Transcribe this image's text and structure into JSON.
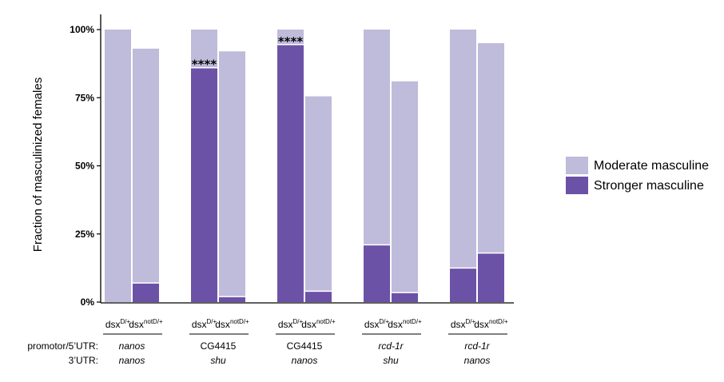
{
  "chart_data": {
    "type": "bar",
    "stacked": true,
    "ylabel": "Fraction of masculinized females",
    "ylim": [
      0,
      100
    ],
    "yticks": [
      0,
      25,
      50,
      75,
      100
    ],
    "ytick_labels": [
      "0%",
      "25%",
      "50%",
      "75%",
      "100%"
    ],
    "legend": {
      "placement": "right",
      "entries": [
        {
          "name": "Moderate masculine",
          "color": "#bfbbdb"
        },
        {
          "name": "Stronger masculine",
          "color": "#6b52a6"
        }
      ]
    },
    "row_labels": {
      "promoter": "promotor/5’UTR:",
      "utr3": "3’UTR:"
    },
    "groups": [
      {
        "promoter": "nanos",
        "promoter_italic": true,
        "utr3": "nanos",
        "utr3_italic": true,
        "bars": [
          {
            "genotype": "dsx",
            "sup": "D/+",
            "total": 100,
            "stronger": 0,
            "annotation": ""
          },
          {
            "genotype": "dsx",
            "sup": "notD/+",
            "total": 93,
            "stronger": 7,
            "annotation": ""
          }
        ]
      },
      {
        "promoter": "CG4415",
        "promoter_italic": false,
        "utr3": "shu",
        "utr3_italic": true,
        "bars": [
          {
            "genotype": "dsx",
            "sup": "D/+",
            "total": 100,
            "stronger": 86,
            "annotation": "****"
          },
          {
            "genotype": "dsx",
            "sup": "notD/+",
            "total": 92,
            "stronger": 2,
            "annotation": ""
          }
        ]
      },
      {
        "promoter": "CG4415",
        "promoter_italic": false,
        "utr3": "nanos",
        "utr3_italic": true,
        "bars": [
          {
            "genotype": "dsx",
            "sup": "D/+",
            "total": 100,
            "stronger": 94.5,
            "annotation": "****"
          },
          {
            "genotype": "dsx",
            "sup": "notD/+",
            "total": 75.5,
            "stronger": 4,
            "annotation": ""
          }
        ]
      },
      {
        "promoter": "rcd-1r",
        "promoter_italic": true,
        "utr3": "shu",
        "utr3_italic": true,
        "bars": [
          {
            "genotype": "dsx",
            "sup": "D/+",
            "total": 100,
            "stronger": 21,
            "annotation": ""
          },
          {
            "genotype": "dsx",
            "sup": "notD/+",
            "total": 81,
            "stronger": 3.5,
            "annotation": ""
          }
        ]
      },
      {
        "promoter": "rcd-1r",
        "promoter_italic": true,
        "utr3": "nanos",
        "utr3_italic": true,
        "bars": [
          {
            "genotype": "dsx",
            "sup": "D/+",
            "total": 100,
            "stronger": 12.5,
            "annotation": ""
          },
          {
            "genotype": "dsx",
            "sup": "notD/+",
            "total": 95,
            "stronger": 18,
            "annotation": ""
          }
        ]
      }
    ]
  }
}
